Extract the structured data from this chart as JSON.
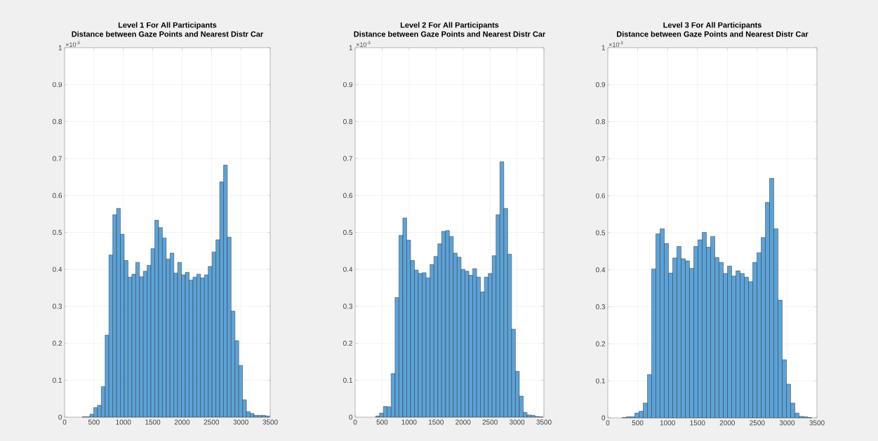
{
  "chart_data": [
    {
      "type": "histogram",
      "title": "Level 1 For All Participants",
      "subtitle": "Distance between Gaze Points and Nearest Distr Car",
      "annotations": [
        "×10$^{-3}$"
      ],
      "color": "#5ba3d9",
      "grid": true,
      "xlim": [
        0,
        3500
      ],
      "ylim": [
        0,
        1
      ],
      "xticks": [
        0,
        500,
        1000,
        1500,
        2000,
        2500,
        3000,
        3500
      ],
      "yticks": [
        0,
        0.1,
        0.2,
        0.3,
        0.4,
        0.5,
        0.6,
        0.7,
        0.8,
        0.9,
        1
      ],
      "bins": [
        300,
        365,
        430,
        495,
        560,
        625,
        690,
        755,
        820,
        885,
        950,
        1015,
        1080,
        1145,
        1210,
        1275,
        1340,
        1405,
        1470,
        1535,
        1600,
        1665,
        1730,
        1795,
        1860,
        1925,
        1990,
        2055,
        2120,
        2185,
        2250,
        2315,
        2380,
        2445,
        2510,
        2575,
        2640,
        2705,
        2770,
        2835,
        2900,
        2965,
        3030,
        3095,
        3160,
        3225,
        3290,
        3355,
        3420,
        3485
      ],
      "values": [
        0.001,
        0.001,
        0.008,
        0.026,
        0.032,
        0.083,
        0.222,
        0.439,
        0.548,
        0.565,
        0.495,
        0.424,
        0.379,
        0.387,
        0.419,
        0.38,
        0.395,
        0.411,
        0.456,
        0.533,
        0.513,
        0.485,
        0.428,
        0.444,
        0.39,
        0.419,
        0.385,
        0.392,
        0.371,
        0.379,
        0.387,
        0.377,
        0.385,
        0.408,
        0.447,
        0.48,
        0.637,
        0.682,
        0.487,
        0.287,
        0.207,
        0.14,
        0.047,
        0.015,
        0.01,
        0.005,
        0.005,
        0.005,
        0.003
      ]
    },
    {
      "type": "histogram",
      "title": "Level 2 For All Participants",
      "subtitle": "Distance between Gaze Points and Nearest Distr Car",
      "annotations": [
        "×10$^{-3}$"
      ],
      "color": "#5ba3d9",
      "grid": true,
      "xlim": [
        0,
        3500
      ],
      "ylim": [
        0,
        1
      ],
      "xticks": [
        0,
        500,
        1000,
        1500,
        2000,
        2500,
        3000,
        3500
      ],
      "yticks": [
        0,
        0.1,
        0.2,
        0.3,
        0.4,
        0.5,
        0.6,
        0.7,
        0.8,
        0.9,
        1
      ],
      "bins": [
        380,
        452,
        524,
        596,
        668,
        740,
        812,
        884,
        956,
        1028,
        1100,
        1172,
        1244,
        1316,
        1388,
        1460,
        1532,
        1604,
        1676,
        1748,
        1820,
        1892,
        1964,
        2036,
        2108,
        2180,
        2252,
        2324,
        2396,
        2468,
        2540,
        2612,
        2684,
        2756,
        2828,
        2900,
        2972,
        3044,
        3116,
        3188,
        3260,
        3332,
        3404,
        3476
      ],
      "values": [
        0.003,
        0.011,
        0.029,
        0.028,
        0.118,
        0.324,
        0.492,
        0.539,
        0.479,
        0.424,
        0.398,
        0.389,
        0.391,
        0.377,
        0.413,
        0.435,
        0.469,
        0.503,
        0.505,
        0.489,
        0.444,
        0.433,
        0.4,
        0.395,
        0.384,
        0.402,
        0.379,
        0.339,
        0.379,
        0.389,
        0.437,
        0.548,
        0.691,
        0.565,
        0.441,
        0.238,
        0.124,
        0.057,
        0.013,
        0.006,
        0.005,
        0.002,
        0.001
      ]
    },
    {
      "type": "histogram",
      "title": "Level 3 For All Participants",
      "subtitle": "Distance between Gaze Points and Nearest Distr Car",
      "annotations": [
        "×10$^{-3}$"
      ],
      "color": "#5ba3d9",
      "grid": true,
      "xlim": [
        0,
        3500
      ],
      "ylim": [
        0,
        1
      ],
      "xticks": [
        0,
        500,
        1000,
        1500,
        2000,
        2500,
        3000,
        3500
      ],
      "yticks": [
        0,
        0.1,
        0.2,
        0.3,
        0.4,
        0.5,
        0.6,
        0.7,
        0.8,
        0.9,
        1
      ],
      "bins": [
        240,
        310.5,
        381,
        451.5,
        522,
        592.5,
        663,
        733.5,
        804,
        874.5,
        945,
        1015.5,
        1086,
        1156.5,
        1227,
        1297.5,
        1368,
        1438.5,
        1509,
        1579.5,
        1650,
        1720.5,
        1791,
        1861.5,
        1932,
        2002.5,
        2073,
        2143.5,
        2214,
        2284.5,
        2355,
        2425.5,
        2496,
        2566.5,
        2637,
        2707.5,
        2778,
        2848.5,
        2919,
        2989.5,
        3060,
        3130.5,
        3201,
        3271.5,
        3342,
        3412.5
      ],
      "values": [
        0.001,
        0.003,
        0.003,
        0.013,
        0.018,
        0.04,
        0.117,
        0.402,
        0.497,
        0.511,
        0.471,
        0.391,
        0.432,
        0.463,
        0.43,
        0.424,
        0.404,
        0.463,
        0.481,
        0.501,
        0.461,
        0.49,
        0.433,
        0.42,
        0.39,
        0.41,
        0.383,
        0.397,
        0.39,
        0.38,
        0.368,
        0.42,
        0.446,
        0.487,
        0.582,
        0.647,
        0.511,
        0.318,
        0.157,
        0.091,
        0.04,
        0.013,
        0.004,
        0.003,
        0.001
      ]
    }
  ]
}
